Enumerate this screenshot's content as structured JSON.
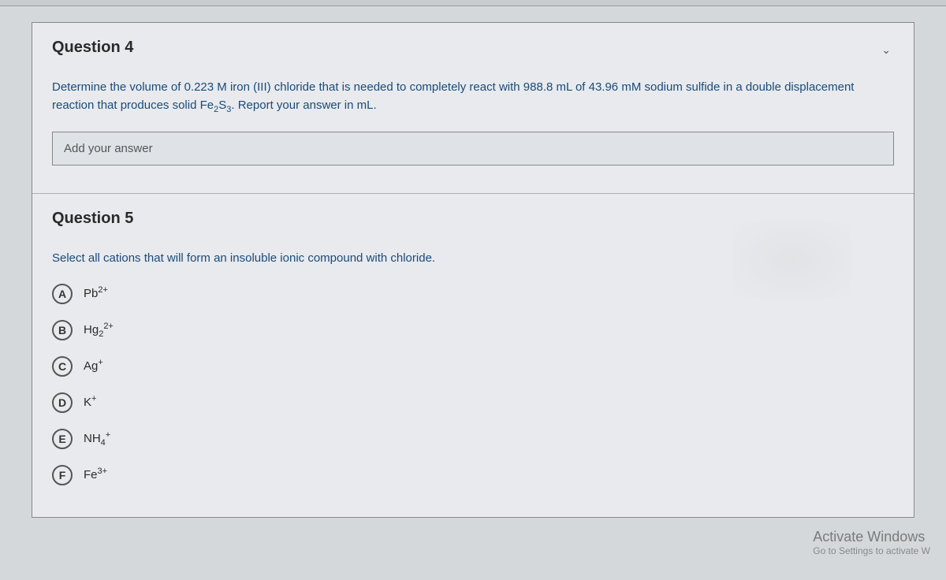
{
  "top_area": {
    "collapse_indicator": "⌄"
  },
  "question4": {
    "title": "Question 4",
    "text_part1": "Determine the volume of 0.223 M iron (III) chloride that is needed to completely react with 988.8 mL of 43.96 mM sodium sulfide in a double displacement reaction that produces solid Fe",
    "text_sub1": "2",
    "text_part2": "S",
    "text_sub2": "3",
    "text_part3": ". Report your answer in mL.",
    "input_placeholder": "Add your answer"
  },
  "question5": {
    "title": "Question 5",
    "text": "Select all cations that will form an insoluble ionic compound with chloride.",
    "options": [
      {
        "letter": "A",
        "base": "Pb",
        "sup": "2+",
        "sub": ""
      },
      {
        "letter": "B",
        "base": "Hg",
        "sub": "2",
        "sup": "2+"
      },
      {
        "letter": "C",
        "base": "Ag",
        "sub": "",
        "sup": "+"
      },
      {
        "letter": "D",
        "base": "K",
        "sub": "",
        "sup": "+"
      },
      {
        "letter": "E",
        "base": "NH",
        "sub": "4",
        "sup": "+"
      },
      {
        "letter": "F",
        "base": "Fe",
        "sub": "",
        "sup": "3+"
      }
    ]
  },
  "watermark": {
    "title": "Activate Windows",
    "subtitle": "Go to Settings to activate W"
  },
  "colors": {
    "background": "#d5d8db",
    "panel": "#e8eaed",
    "text_dark": "#2a2a2a",
    "text_blue": "#1a4b7a",
    "border": "#888"
  }
}
